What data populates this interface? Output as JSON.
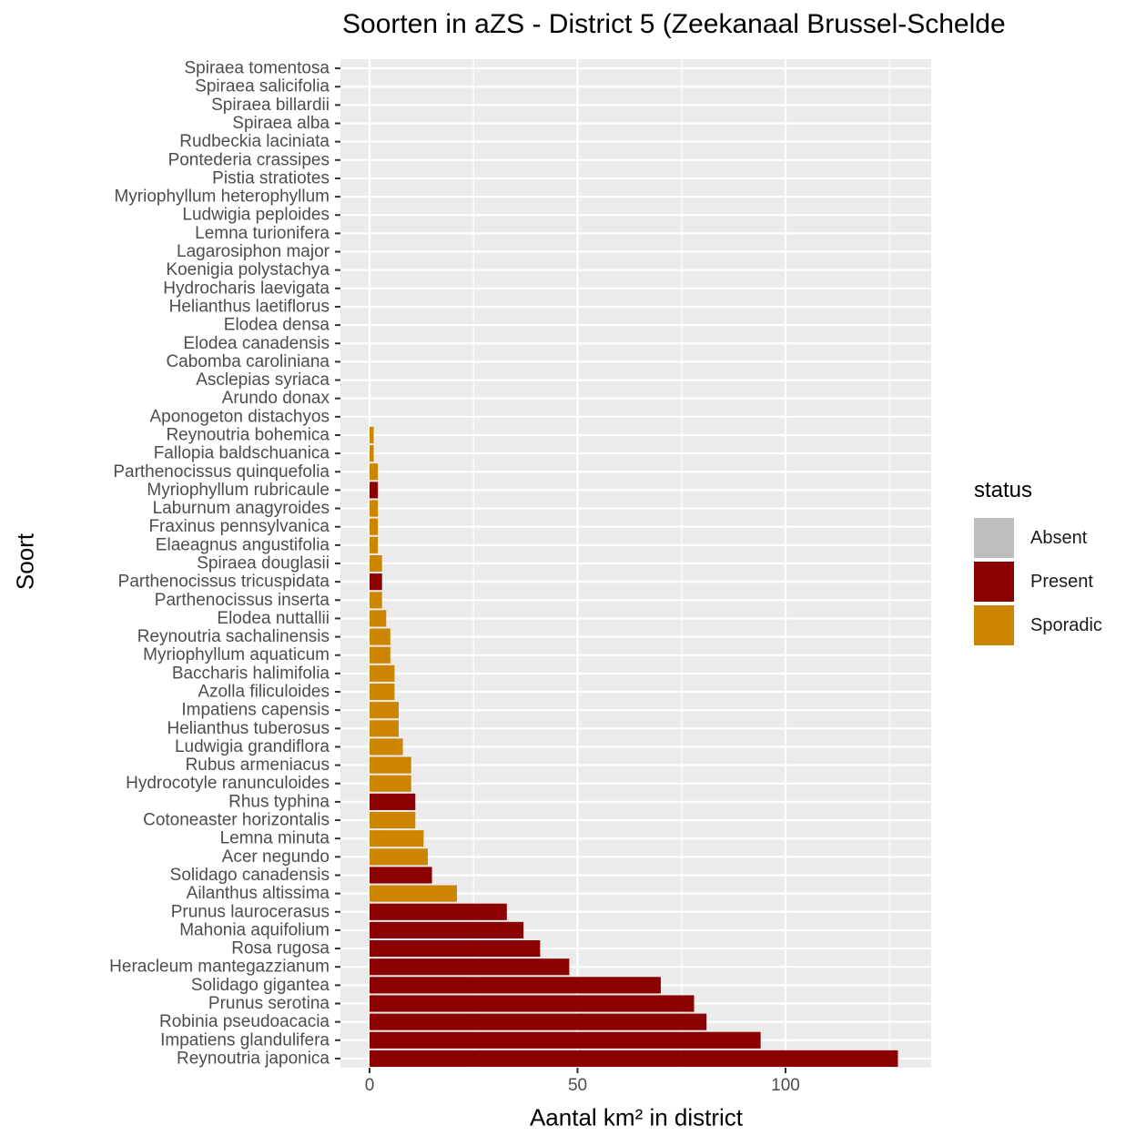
{
  "chart_data": {
    "type": "bar",
    "orientation": "horizontal",
    "title": "Soorten in aZS - District 5 (Zeekanaal Brussel-Schelde",
    "xlabel": "Aantal km² in district",
    "ylabel": "Soort",
    "xlim": [
      -7,
      135
    ],
    "xticks": [
      0,
      50,
      100
    ],
    "grid": true,
    "legend_position": "right",
    "legend": {
      "title": "status",
      "items": [
        {
          "label": "Absent",
          "color": "#BEBEBE"
        },
        {
          "label": "Present",
          "color": "#8B0000"
        },
        {
          "label": "Sporadic",
          "color": "#CD8500"
        }
      ]
    },
    "categories": [
      "Spiraea tomentosa",
      "Spiraea salicifolia",
      "Spiraea billardii",
      "Spiraea alba",
      "Rudbeckia laciniata",
      "Pontederia crassipes",
      "Pistia stratiotes",
      "Myriophyllum heterophyllum",
      "Ludwigia peploides",
      "Lemna turionifera",
      "Lagarosiphon major",
      "Koenigia polystachya",
      "Hydrocharis laevigata",
      "Helianthus laetiflorus",
      "Elodea densa",
      "Elodea canadensis",
      "Cabomba caroliniana",
      "Asclepias syriaca",
      "Arundo donax",
      "Aponogeton distachyos",
      "Reynoutria bohemica",
      "Fallopia baldschuanica",
      "Parthenocissus quinquefolia",
      "Myriophyllum rubricaule",
      "Laburnum anagyroides",
      "Fraxinus pennsylvanica",
      "Elaeagnus angustifolia",
      "Spiraea douglasii",
      "Parthenocissus tricuspidata",
      "Parthenocissus inserta",
      "Elodea nuttallii",
      "Reynoutria sachalinensis",
      "Myriophyllum aquaticum",
      "Baccharis halimifolia",
      "Azolla filiculoides",
      "Impatiens capensis",
      "Helianthus tuberosus",
      "Ludwigia grandiflora",
      "Rubus armeniacus",
      "Hydrocotyle ranunculoides",
      "Rhus typhina",
      "Cotoneaster horizontalis",
      "Lemna minuta",
      "Acer negundo",
      "Solidago canadensis",
      "Ailanthus altissima",
      "Prunus laurocerasus",
      "Mahonia aquifolium",
      "Rosa rugosa",
      "Heracleum mantegazzianum",
      "Solidago gigantea",
      "Prunus serotina",
      "Robinia pseudoacacia",
      "Impatiens glandulifera",
      "Reynoutria japonica"
    ],
    "values": [
      0,
      0,
      0,
      0,
      0,
      0,
      0,
      0,
      0,
      0,
      0,
      0,
      0,
      0,
      0,
      0,
      0,
      0,
      0,
      0,
      1,
      1,
      2,
      2,
      2,
      2,
      2,
      3,
      3,
      3,
      4,
      5,
      5,
      6,
      6,
      7,
      7,
      8,
      10,
      10,
      11,
      11,
      13,
      14,
      15,
      21,
      33,
      37,
      41,
      48,
      70,
      78,
      81,
      94,
      127
    ],
    "status": [
      "Absent",
      "Absent",
      "Absent",
      "Absent",
      "Absent",
      "Absent",
      "Absent",
      "Absent",
      "Absent",
      "Absent",
      "Absent",
      "Absent",
      "Absent",
      "Absent",
      "Absent",
      "Absent",
      "Absent",
      "Absent",
      "Absent",
      "Absent",
      "Sporadic",
      "Sporadic",
      "Sporadic",
      "Present",
      "Sporadic",
      "Sporadic",
      "Sporadic",
      "Sporadic",
      "Present",
      "Sporadic",
      "Sporadic",
      "Sporadic",
      "Sporadic",
      "Sporadic",
      "Sporadic",
      "Sporadic",
      "Sporadic",
      "Sporadic",
      "Sporadic",
      "Sporadic",
      "Present",
      "Sporadic",
      "Sporadic",
      "Sporadic",
      "Present",
      "Sporadic",
      "Present",
      "Present",
      "Present",
      "Present",
      "Present",
      "Present",
      "Present",
      "Present",
      "Present"
    ]
  }
}
